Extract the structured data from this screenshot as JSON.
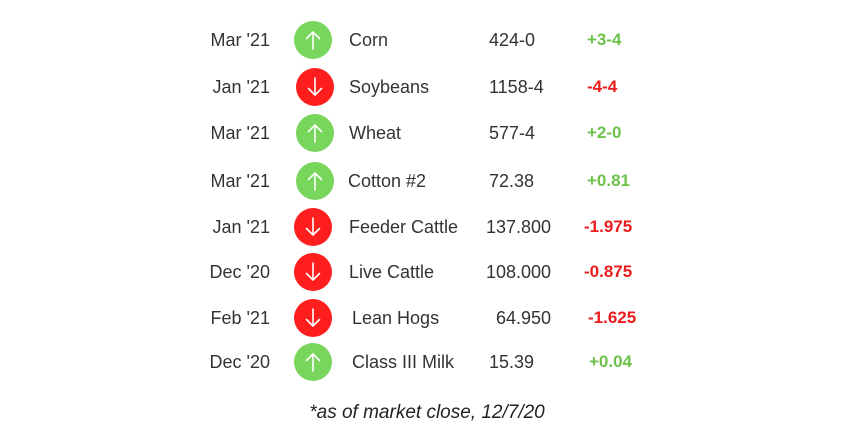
{
  "colors": {
    "up": "#77d65b",
    "down": "#ff1e1e",
    "up_text": "#6cc24a",
    "down_text": "#ee1c1c",
    "text": "#333333"
  },
  "rows": [
    {
      "month": "Mar '21",
      "direction": "up",
      "icon": "arrow-up-icon",
      "commodity": "Corn",
      "price": "424-0",
      "change": "+3-4"
    },
    {
      "month": "Jan '21",
      "direction": "down",
      "icon": "arrow-down-icon",
      "commodity": "Soybeans",
      "price": "1158-4",
      "change": "-4-4"
    },
    {
      "month": "Mar '21",
      "direction": "up",
      "icon": "arrow-up-icon",
      "commodity": "Wheat",
      "price": "577-4",
      "change": "+2-0"
    },
    {
      "month": "Mar '21",
      "direction": "up",
      "icon": "arrow-up-icon",
      "commodity": "Cotton #2",
      "price": "72.38",
      "change": "+0.81"
    },
    {
      "month": "Jan '21",
      "direction": "down",
      "icon": "arrow-down-icon",
      "commodity": "Feeder Cattle",
      "price": "137.800",
      "change": "-1.975"
    },
    {
      "month": "Dec '20",
      "direction": "down",
      "icon": "arrow-down-icon",
      "commodity": "Live Cattle",
      "price": "108.000",
      "change": "-0.875"
    },
    {
      "month": "Feb '21",
      "direction": "down",
      "icon": "arrow-down-icon",
      "commodity": "Lean Hogs",
      "price": "64.950",
      "change": "-1.625"
    },
    {
      "month": "Dec '20",
      "direction": "up",
      "icon": "arrow-up-icon",
      "commodity": "Class III Milk",
      "price": "15.39",
      "change": "+0.04"
    }
  ],
  "footnote": "*as of market close, 12/7/20"
}
